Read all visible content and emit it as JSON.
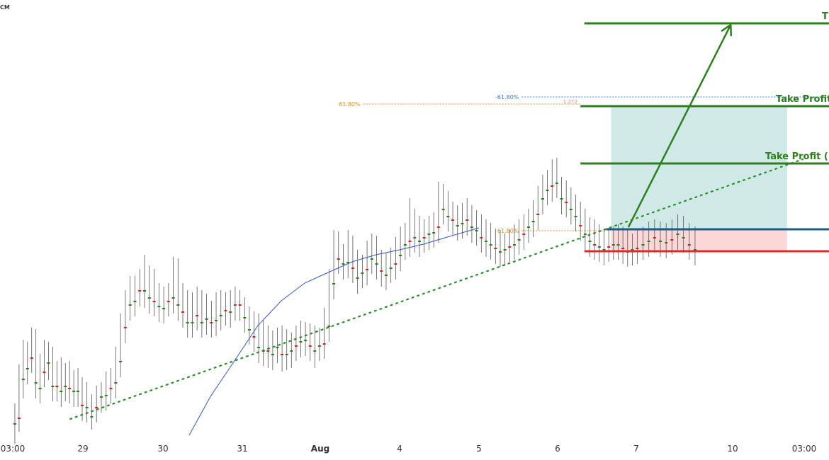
{
  "corner_label": "CM",
  "chart_data": {
    "type": "candlestick",
    "x_ticks": [
      {
        "label": "03:00",
        "t": 0
      },
      {
        "label": "29",
        "t": 1
      },
      {
        "label": "30",
        "t": 2
      },
      {
        "label": "31",
        "t": 3
      },
      {
        "label": "Aug",
        "t": 4
      },
      {
        "label": "4",
        "t": 5
      },
      {
        "label": "5",
        "t": 6
      },
      {
        "label": "6",
        "t": 7
      },
      {
        "label": "7",
        "t": 8
      },
      {
        "label": "10",
        "t": 9
      },
      {
        "label": "03:00",
        "t": 10
      }
    ],
    "x_range": [
      -0.02,
      10.4
    ],
    "y_range": [
      0,
      650
    ],
    "ohlc": [
      [
        0.01,
        585,
        598,
        580,
        612
      ],
      [
        0.03,
        530,
        590,
        525,
        595
      ],
      [
        0.05,
        495,
        535,
        480,
        548
      ],
      [
        0.07,
        498,
        520,
        488,
        528
      ],
      [
        0.09,
        478,
        505,
        468,
        512
      ],
      [
        0.11,
        480,
        540,
        470,
        548
      ],
      [
        0.13,
        515,
        548,
        508,
        555
      ],
      [
        0.15,
        495,
        525,
        482,
        532
      ],
      [
        0.17,
        498,
        512,
        485,
        522
      ],
      [
        0.19,
        505,
        545,
        492,
        552
      ],
      [
        0.21,
        525,
        545,
        515,
        552
      ],
      [
        0.23,
        520,
        552,
        510,
        560
      ],
      [
        0.25,
        528,
        545,
        518,
        552
      ],
      [
        0.27,
        525,
        548,
        514,
        555
      ],
      [
        0.29,
        538,
        552,
        528,
        560
      ],
      [
        0.31,
        535,
        552,
        526,
        560
      ],
      [
        0.33,
        548,
        572,
        540,
        580
      ],
      [
        0.35,
        555,
        575,
        545,
        582
      ],
      [
        0.37,
        572,
        588,
        560,
        592
      ],
      [
        0.39,
        560,
        575,
        550,
        582
      ],
      [
        0.41,
        555,
        560,
        540,
        568
      ],
      [
        0.43,
        540,
        558,
        530,
        565
      ],
      [
        0.45,
        535,
        548,
        520,
        555
      ],
      [
        0.47,
        505,
        540,
        495,
        548
      ],
      [
        0.49,
        458,
        510,
        445,
        518
      ],
      [
        0.51,
        425,
        462,
        410,
        470
      ],
      [
        0.53,
        405,
        430,
        395,
        438
      ],
      [
        0.55,
        405,
        425,
        390,
        432
      ],
      [
        0.57,
        395,
        410,
        385,
        418
      ],
      [
        0.59,
        375,
        410,
        365,
        420
      ],
      [
        0.61,
        390,
        420,
        378,
        428
      ],
      [
        0.63,
        395,
        425,
        385,
        432
      ],
      [
        0.65,
        415,
        432,
        405,
        440
      ],
      [
        0.67,
        420,
        435,
        410,
        442
      ],
      [
        0.69,
        415,
        425,
        405,
        432
      ],
      [
        0.71,
        378,
        420,
        365,
        428
      ],
      [
        0.73,
        380,
        430,
        372,
        438
      ],
      [
        0.75,
        415,
        440,
        405,
        448
      ],
      [
        0.77,
        425,
        455,
        415,
        462
      ],
      [
        0.79,
        428,
        455,
        420,
        462
      ],
      [
        0.81,
        420,
        445,
        410,
        452
      ],
      [
        0.83,
        425,
        455,
        415,
        462
      ],
      [
        0.85,
        430,
        450,
        420,
        458
      ],
      [
        0.87,
        440,
        455,
        432,
        462
      ],
      [
        0.89,
        428,
        452,
        420,
        460
      ],
      [
        0.91,
        425,
        445,
        418,
        452
      ],
      [
        0.93,
        428,
        438,
        420,
        445
      ],
      [
        0.95,
        425,
        440,
        415,
        448
      ],
      [
        0.97,
        420,
        430,
        410,
        438
      ],
      [
        0.99,
        425,
        430,
        412,
        438
      ],
      [
        1.01,
        435,
        448,
        428,
        455
      ],
      [
        1.03,
        448,
        465,
        440,
        472
      ],
      [
        1.05,
        455,
        475,
        448,
        482
      ],
      [
        1.07,
        458,
        490,
        450,
        498
      ],
      [
        1.09,
        468,
        495,
        460,
        502
      ],
      [
        1.11,
        475,
        495,
        468,
        505
      ],
      [
        1.13,
        482,
        500,
        475,
        508
      ],
      [
        1.15,
        478,
        490,
        468,
        498
      ],
      [
        1.17,
        475,
        500,
        468,
        510
      ],
      [
        1.19,
        480,
        500,
        472,
        508
      ],
      [
        1.21,
        485,
        495,
        478,
        505
      ],
      [
        1.23,
        475,
        488,
        468,
        495
      ],
      [
        1.25,
        468,
        482,
        460,
        490
      ],
      [
        1.27,
        470,
        480,
        462,
        488
      ],
      [
        1.29,
        472,
        488,
        465,
        495
      ],
      [
        1.31,
        475,
        495,
        468,
        505
      ],
      [
        1.33,
        478,
        488,
        470,
        495
      ],
      [
        1.35,
        450,
        485,
        440,
        492
      ],
      [
        1.37,
        395,
        460,
        380,
        468
      ],
      [
        1.39,
        340,
        400,
        325,
        408
      ],
      [
        1.41,
        342,
        365,
        330,
        372
      ],
      [
        1.43,
        360,
        372,
        348,
        380
      ],
      [
        1.45,
        340,
        370,
        325,
        378
      ],
      [
        1.47,
        348,
        378,
        340,
        385
      ],
      [
        1.49,
        368,
        392,
        360,
        400
      ],
      [
        1.51,
        375,
        385,
        362,
        392
      ],
      [
        1.53,
        355,
        380,
        345,
        388
      ],
      [
        1.55,
        345,
        365,
        335,
        372
      ],
      [
        1.57,
        348,
        372,
        340,
        380
      ],
      [
        1.59,
        368,
        382,
        358,
        390
      ],
      [
        1.61,
        372,
        388,
        365,
        395
      ],
      [
        1.63,
        365,
        378,
        355,
        385
      ],
      [
        1.65,
        350,
        372,
        340,
        380
      ],
      [
        1.67,
        335,
        360,
        325,
        368
      ],
      [
        1.69,
        330,
        345,
        320,
        352
      ],
      [
        1.71,
        295,
        340,
        285,
        348
      ],
      [
        1.73,
        310,
        335,
        298,
        342
      ],
      [
        1.75,
        320,
        340,
        310,
        348
      ],
      [
        1.77,
        325,
        335,
        315,
        342
      ],
      [
        1.79,
        320,
        330,
        312,
        338
      ],
      [
        1.81,
        315,
        328,
        305,
        335
      ],
      [
        1.83,
        272,
        320,
        262,
        328
      ],
      [
        1.85,
        275,
        295,
        265,
        302
      ],
      [
        1.87,
        285,
        305,
        278,
        312
      ],
      [
        1.89,
        300,
        310,
        290,
        318
      ],
      [
        1.91,
        305,
        318,
        295,
        325
      ],
      [
        1.93,
        302,
        315,
        292,
        322
      ],
      [
        1.95,
        295,
        310,
        285,
        318
      ],
      [
        1.97,
        305,
        320,
        298,
        328
      ],
      [
        1.99,
        312,
        325,
        305,
        332
      ],
      [
        2.01,
        318,
        335,
        308,
        342
      ],
      [
        2.03,
        325,
        340,
        315,
        348
      ],
      [
        2.05,
        330,
        345,
        322,
        352
      ],
      [
        2.07,
        338,
        350,
        330,
        358
      ],
      [
        2.09,
        340,
        355,
        332,
        362
      ],
      [
        2.11,
        345,
        352,
        338,
        360
      ],
      [
        2.13,
        340,
        348,
        332,
        355
      ],
      [
        2.15,
        332,
        345,
        322,
        352
      ],
      [
        2.17,
        325,
        338,
        315,
        345
      ],
      [
        2.19,
        318,
        330,
        308,
        338
      ],
      [
        2.21,
        310,
        320,
        300,
        328
      ],
      [
        2.23,
        298,
        312,
        288,
        320
      ],
      [
        2.25,
        278,
        302,
        268,
        310
      ],
      [
        2.27,
        262,
        280,
        252,
        288
      ],
      [
        2.29,
        255,
        268,
        245,
        275
      ],
      [
        2.31,
        240,
        262,
        230,
        270
      ],
      [
        2.33,
        238,
        258,
        228,
        265
      ],
      [
        2.35,
        265,
        280,
        255,
        288
      ],
      [
        2.37,
        270,
        285,
        262,
        292
      ],
      [
        2.39,
        280,
        295,
        272,
        302
      ],
      [
        2.41,
        290,
        305,
        282,
        312
      ],
      [
        2.43,
        300,
        318,
        292,
        325
      ],
      [
        2.45,
        310,
        330,
        302,
        338
      ],
      [
        2.47,
        322,
        340,
        315,
        348
      ],
      [
        2.49,
        325,
        345,
        318,
        352
      ],
      [
        2.51,
        332,
        348,
        325,
        355
      ],
      [
        2.53,
        338,
        352,
        330,
        360
      ],
      [
        2.55,
        340,
        348,
        332,
        355
      ],
      [
        2.57,
        335,
        345,
        328,
        352
      ],
      [
        2.59,
        332,
        345,
        325,
        352
      ],
      [
        2.61,
        335,
        350,
        328,
        358
      ],
      [
        2.63,
        340,
        355,
        332,
        362
      ],
      [
        2.65,
        345,
        352,
        338,
        360
      ],
      [
        2.67,
        340,
        350,
        332,
        358
      ],
      [
        2.69,
        335,
        345,
        328,
        352
      ],
      [
        2.71,
        328,
        340,
        320,
        348
      ],
      [
        2.73,
        325,
        335,
        318,
        342
      ],
      [
        2.75,
        328,
        340,
        320,
        348
      ],
      [
        2.77,
        330,
        342,
        322,
        350
      ],
      [
        2.79,
        325,
        338,
        318,
        345
      ],
      [
        2.81,
        318,
        330,
        310,
        338
      ],
      [
        2.83,
        320,
        335,
        312,
        342
      ],
      [
        2.85,
        330,
        345,
        322,
        352
      ],
      [
        2.87,
        335,
        352,
        328,
        360
      ]
    ],
    "ema_line": [
      [
        2.33,
        615
      ],
      [
        2.6,
        560
      ],
      [
        2.9,
        510
      ],
      [
        3.2,
        460
      ],
      [
        3.5,
        425
      ],
      [
        3.8,
        400
      ],
      [
        4.1,
        385
      ],
      [
        4.4,
        370
      ],
      [
        4.7,
        360
      ],
      [
        5.0,
        353
      ],
      [
        5.3,
        345
      ],
      [
        5.6,
        335
      ],
      [
        6.0,
        322
      ]
    ],
    "trend_line": [
      [
        0.82,
        592
      ],
      [
        9.98,
        225
      ]
    ],
    "levels": [
      {
        "name": "t-level",
        "label": "T",
        "y": 33,
        "x0": 7.34,
        "x1": 10.4,
        "color": "#2e7d1e",
        "width": 3
      },
      {
        "name": "take-profit-2",
        "label": "Take Profit",
        "y": 150,
        "x0": 7.29,
        "x1": 10.4,
        "color": "#2e7d1e",
        "width": 3
      },
      {
        "name": "take-profit-1",
        "label": "Take Profit (",
        "y": 231,
        "x0": 7.29,
        "x1": 10.4,
        "color": "#2e7d1e",
        "width": 3
      },
      {
        "name": "entry",
        "label": "",
        "y": 324,
        "x0": 7.62,
        "x1": 10.4,
        "color": "#1d5b86",
        "width": 3
      },
      {
        "name": "stop-loss",
        "label": "",
        "y": 355,
        "x0": 7.34,
        "x1": 10.4,
        "color": "#e02b2b",
        "width": 3
      }
    ],
    "fib_lines": [
      {
        "name": "fib-6180-upper",
        "label": "61.80%",
        "y": 147,
        "x0": 4.22,
        "x1": 7.29,
        "color": "#d98c1e"
      },
      {
        "name": "fib-minus-6180",
        "label": "-61.80%",
        "y": 137,
        "x0": 6.22,
        "x1": 10.4,
        "color": "#3a7bd5"
      },
      {
        "name": "fib-6180-lower",
        "label": "61.80%",
        "y": 326,
        "x0": 6.22,
        "x1": 7.62,
        "color": "#d98c1e"
      }
    ],
    "fib_small_label": {
      "label": "1.272",
      "x": 7.07,
      "y": 143
    },
    "zones": [
      {
        "name": "profit-zone",
        "x0": 7.68,
        "x1": 9.76,
        "y0": 150,
        "y1": 324,
        "color": "#cfeae6"
      },
      {
        "name": "risk-zone",
        "x0": 7.68,
        "x1": 9.76,
        "y0": 324,
        "y1": 355,
        "color": "#fbd7d7"
      }
    ],
    "projection_arrow": {
      "from": [
        7.9,
        321
      ],
      "to": [
        8.98,
        35
      ],
      "color": "#2e7d1e"
    },
    "colors": {
      "up": "#2e7d1e",
      "down": "#d42020",
      "ema": "#3355cc",
      "axis_text": "#333333"
    }
  }
}
